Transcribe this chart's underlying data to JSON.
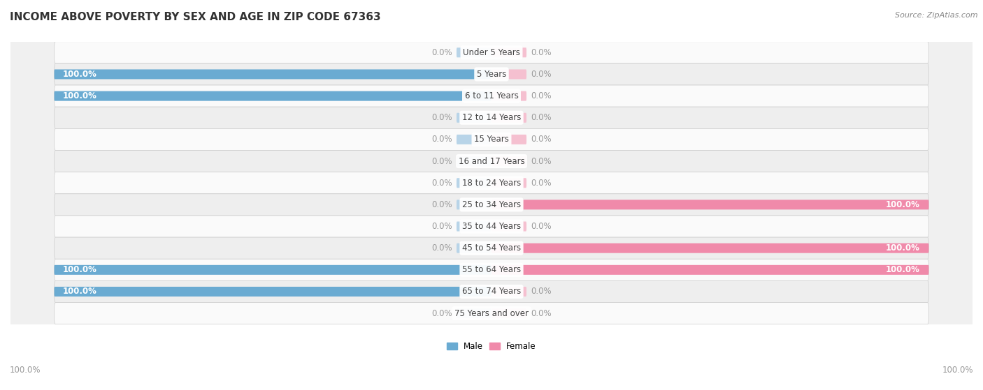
{
  "title": "INCOME ABOVE POVERTY BY SEX AND AGE IN ZIP CODE 67363",
  "source": "Source: ZipAtlas.com",
  "categories": [
    "Under 5 Years",
    "5 Years",
    "6 to 11 Years",
    "12 to 14 Years",
    "15 Years",
    "16 and 17 Years",
    "18 to 24 Years",
    "25 to 34 Years",
    "35 to 44 Years",
    "45 to 54 Years",
    "55 to 64 Years",
    "65 to 74 Years",
    "75 Years and over"
  ],
  "male_values": [
    0.0,
    100.0,
    100.0,
    0.0,
    0.0,
    0.0,
    0.0,
    0.0,
    0.0,
    0.0,
    100.0,
    100.0,
    0.0
  ],
  "female_values": [
    0.0,
    0.0,
    0.0,
    0.0,
    0.0,
    0.0,
    0.0,
    100.0,
    0.0,
    100.0,
    100.0,
    0.0,
    0.0
  ],
  "male_color": "#6aabd2",
  "female_color": "#f08aaa",
  "male_light_color": "#b8d4e8",
  "female_light_color": "#f5c0d0",
  "male_label_color": "#ffffff",
  "female_label_color": "#ffffff",
  "zero_label_color": "#999999",
  "bar_height": 0.45,
  "bg_color": "#f0f0f0",
  "row_colors": [
    "#fafafa",
    "#eeeeee"
  ],
  "xlim": [
    -100,
    100
  ],
  "title_fontsize": 11,
  "source_fontsize": 8,
  "label_fontsize": 8.5,
  "cat_fontsize": 8.5
}
